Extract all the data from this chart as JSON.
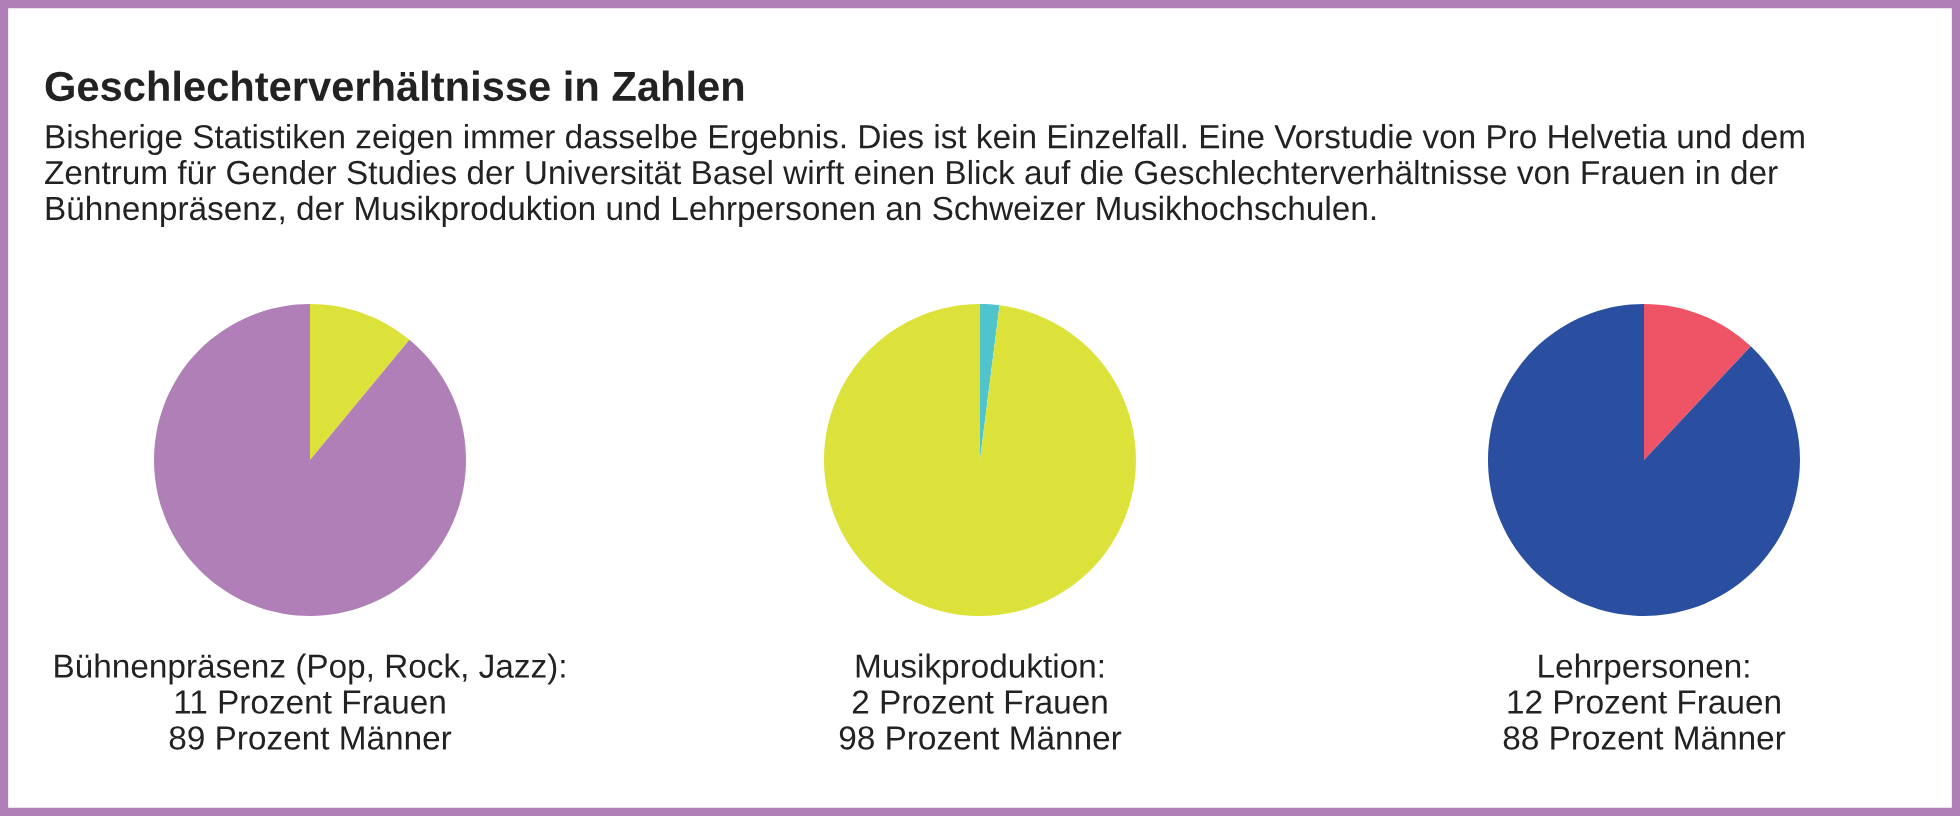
{
  "chart_data": [
    {
      "type": "pie",
      "title": "Geschlechterverhältnisse in Zahlen",
      "subtitle": "Bisherige Statistiken zeigen immer dasselbe Ergebnis. Dies ist kein Einzelfall. Eine Vorstudie von Pro Helvetia und dem\nZentrum für Gender Studies der Universität Basel wirft einen Blick auf die Geschlechterverhältnisse von Frauen in der\nBühnenpräsenz, der Musikproduktion und Lehrpersonen an Schweizer Musikhochschulen.",
      "xlabel": "Bühnenpräsenz (Pop, Rock, Jazz):\n11 Prozent Frauen\n89 Prozent Männer",
      "categories": [
        null,
        null
      ],
      "values": [
        11,
        89
      ],
      "colors": [
        "#dde23a",
        "#b07fb8"
      ]
    },
    {
      "type": "pie",
      "xlabel": "Musikproduktion:\n2 Prozent Frauen\n98 Prozent Männer",
      "categories": [
        null,
        null
      ],
      "values": [
        2,
        98
      ],
      "colors": [
        "#4fc4cf",
        "#dde23a"
      ]
    },
    {
      "type": "pie",
      "xlabel": "Lehrpersonen:\n12 Prozent Frauen\n88 Prozent Männer",
      "categories": [
        null,
        null
      ],
      "values": [
        12,
        88
      ],
      "colors": [
        "#ef5466",
        "#2a4fa0"
      ]
    }
  ]
}
